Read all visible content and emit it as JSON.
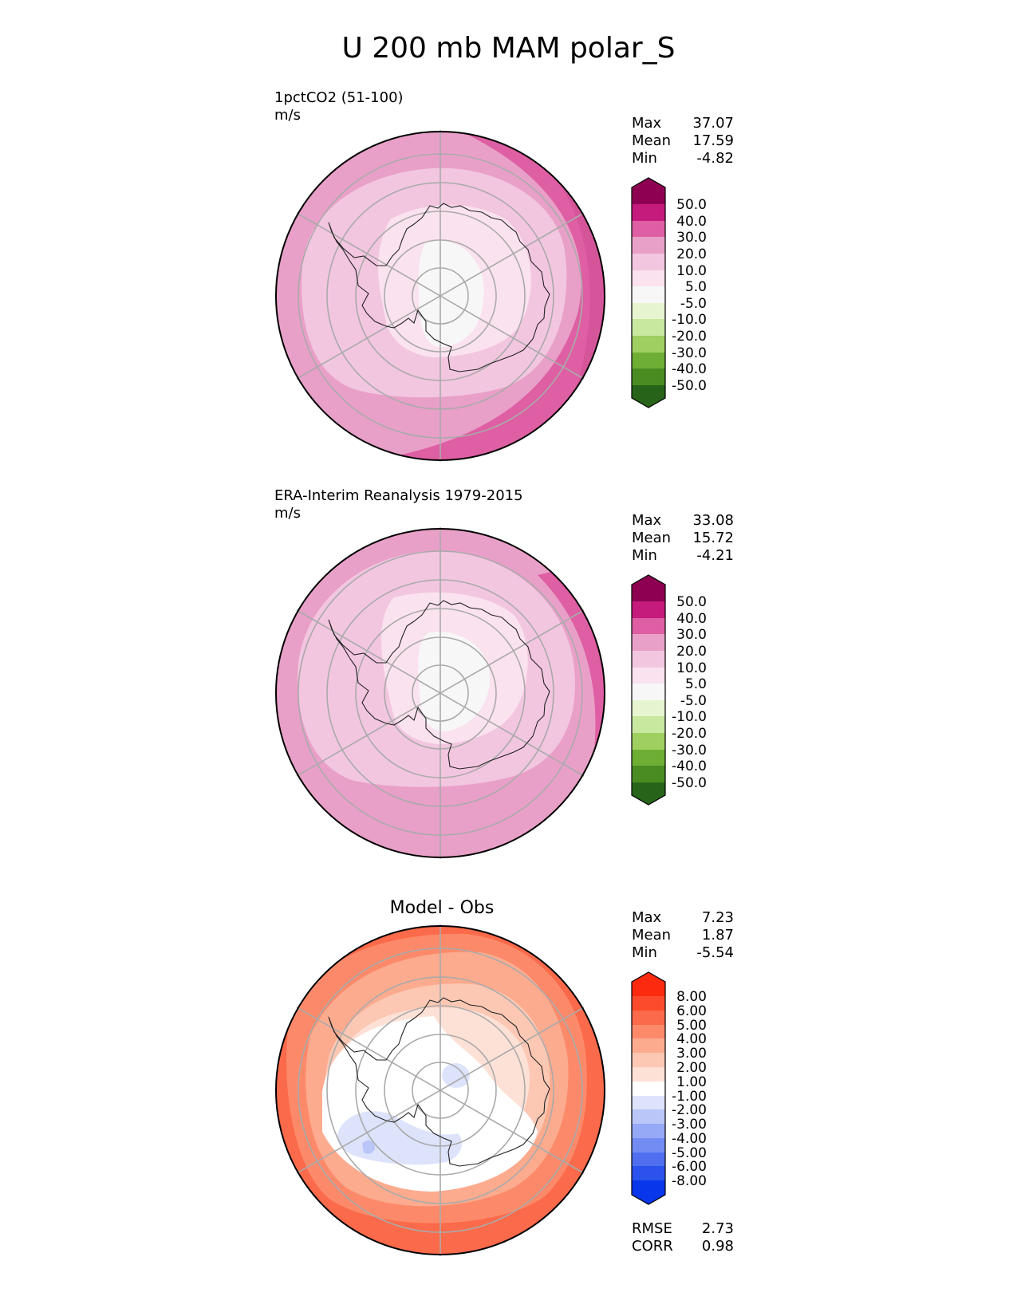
{
  "title": "U 200 mb MAM polar_S",
  "panels": [
    {
      "title_line1": "1pctCO2 (51-100)",
      "title_line2": "m/s",
      "stats": [
        {
          "label": "Max",
          "value": "37.07"
        },
        {
          "label": "Mean",
          "value": "17.59"
        },
        {
          "label": "Min",
          "value": "-4.82"
        }
      ]
    },
    {
      "title_line1": "ERA-Interim Reanalysis 1979-2015",
      "title_line2": "m/s",
      "stats": [
        {
          "label": "Max",
          "value": "33.08"
        },
        {
          "label": "Mean",
          "value": "15.72"
        },
        {
          "label": "Min",
          "value": "-4.21"
        }
      ]
    },
    {
      "title": "Model - Obs",
      "stats": [
        {
          "label": "Max",
          "value": "7.23"
        },
        {
          "label": "Mean",
          "value": "1.87"
        },
        {
          "label": "Min",
          "value": "-5.54"
        }
      ],
      "metrics": [
        {
          "label": "RMSE",
          "value": "2.73"
        },
        {
          "label": "CORR",
          "value": "0.98"
        }
      ]
    }
  ],
  "chart_data": [
    {
      "type": "heatmap",
      "projection": "south polar stereographic",
      "colorbar": {
        "ticks": [
          "50.0",
          "40.0",
          "30.0",
          "20.0",
          "10.0",
          "5.0",
          "-5.0",
          "-10.0",
          "-20.0",
          "-30.0",
          "-40.0",
          "-50.0"
        ],
        "colors_top_to_bottom": [
          "#8e0152",
          "#c51b7d",
          "#de5fa3",
          "#e9a0c8",
          "#f3c6e0",
          "#fbe2ef",
          "#f7f7f7",
          "#e6f5d0",
          "#c8e8a0",
          "#9fcf61",
          "#6fae35",
          "#4a8c22",
          "#276419"
        ],
        "extend": "both"
      }
    },
    {
      "type": "heatmap",
      "projection": "south polar stereographic",
      "colorbar": {
        "ticks": [
          "50.0",
          "40.0",
          "30.0",
          "20.0",
          "10.0",
          "5.0",
          "-5.0",
          "-10.0",
          "-20.0",
          "-30.0",
          "-40.0",
          "-50.0"
        ],
        "colors_top_to_bottom": [
          "#8e0152",
          "#c51b7d",
          "#de5fa3",
          "#e9a0c8",
          "#f3c6e0",
          "#fbe2ef",
          "#f7f7f7",
          "#e6f5d0",
          "#c8e8a0",
          "#9fcf61",
          "#6fae35",
          "#4a8c22",
          "#276419"
        ],
        "extend": "both"
      }
    },
    {
      "type": "heatmap",
      "projection": "south polar stereographic",
      "colorbar": {
        "ticks": [
          "8.00",
          "6.00",
          "5.00",
          "4.00",
          "3.00",
          "2.00",
          "1.00",
          "-1.00",
          "-2.00",
          "-3.00",
          "-4.00",
          "-5.00",
          "-6.00",
          "-8.00"
        ],
        "colors_top_to_bottom": [
          "#fc2a0e",
          "#fb4b2c",
          "#fb6a4a",
          "#fc8a6a",
          "#fcab8f",
          "#fcc8b4",
          "#fee1d6",
          "#ffffff",
          "#dde3fb",
          "#bac6f8",
          "#96a9f6",
          "#738cf3",
          "#4f6ff0",
          "#2c52ed",
          "#0836eb"
        ],
        "extend": "both"
      }
    }
  ]
}
